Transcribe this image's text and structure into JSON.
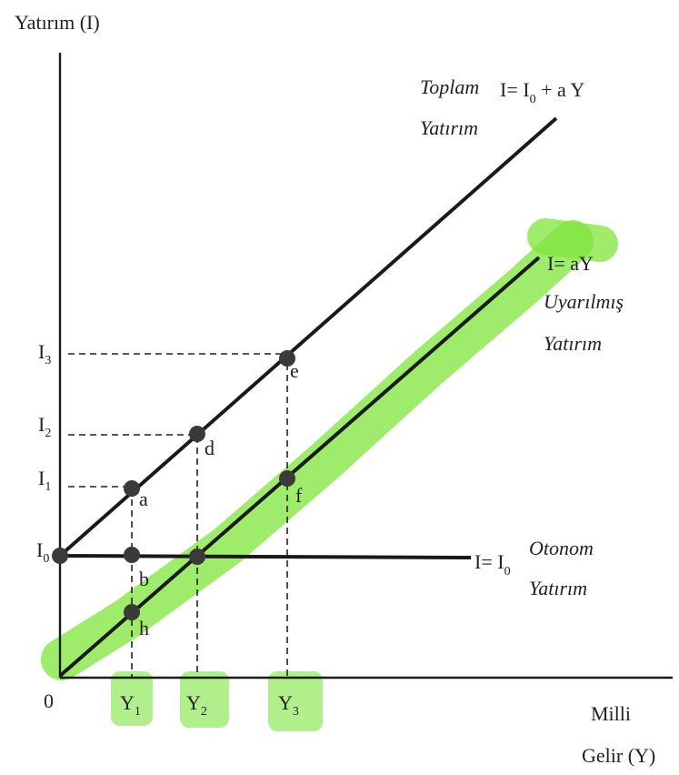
{
  "axes": {
    "y_title": "Yatırım (I)",
    "x_title_line1": "Milli",
    "x_title_line2": "Gelir (Y)",
    "origin": "0"
  },
  "y_ticks": [
    {
      "base": "I",
      "sub": "3"
    },
    {
      "base": "I",
      "sub": "2"
    },
    {
      "base": "I",
      "sub": "1"
    },
    {
      "base": "I",
      "sub": "0"
    }
  ],
  "x_ticks": [
    {
      "base": "Y",
      "sub": "1"
    },
    {
      "base": "Y",
      "sub": "2"
    },
    {
      "base": "Y",
      "sub": "3"
    }
  ],
  "lines": {
    "total": {
      "title1": "Toplam",
      "title2": "Yatırım",
      "eq_pre": "I= I",
      "eq_sub": "0",
      "eq_post": " +  a Y"
    },
    "induced": {
      "eq": "I= aY",
      "title1": "Uyarılmış",
      "title2": "Yatırım"
    },
    "autonomous": {
      "eq_pre": "I= I",
      "eq_sub": "0",
      "title1": "Otonom",
      "title2": "Yatırım"
    }
  },
  "points": [
    "a",
    "b",
    "d",
    "e",
    "f",
    "h"
  ],
  "colors": {
    "highlight": "#7fe63c",
    "ink": "#1a1a1a"
  }
}
